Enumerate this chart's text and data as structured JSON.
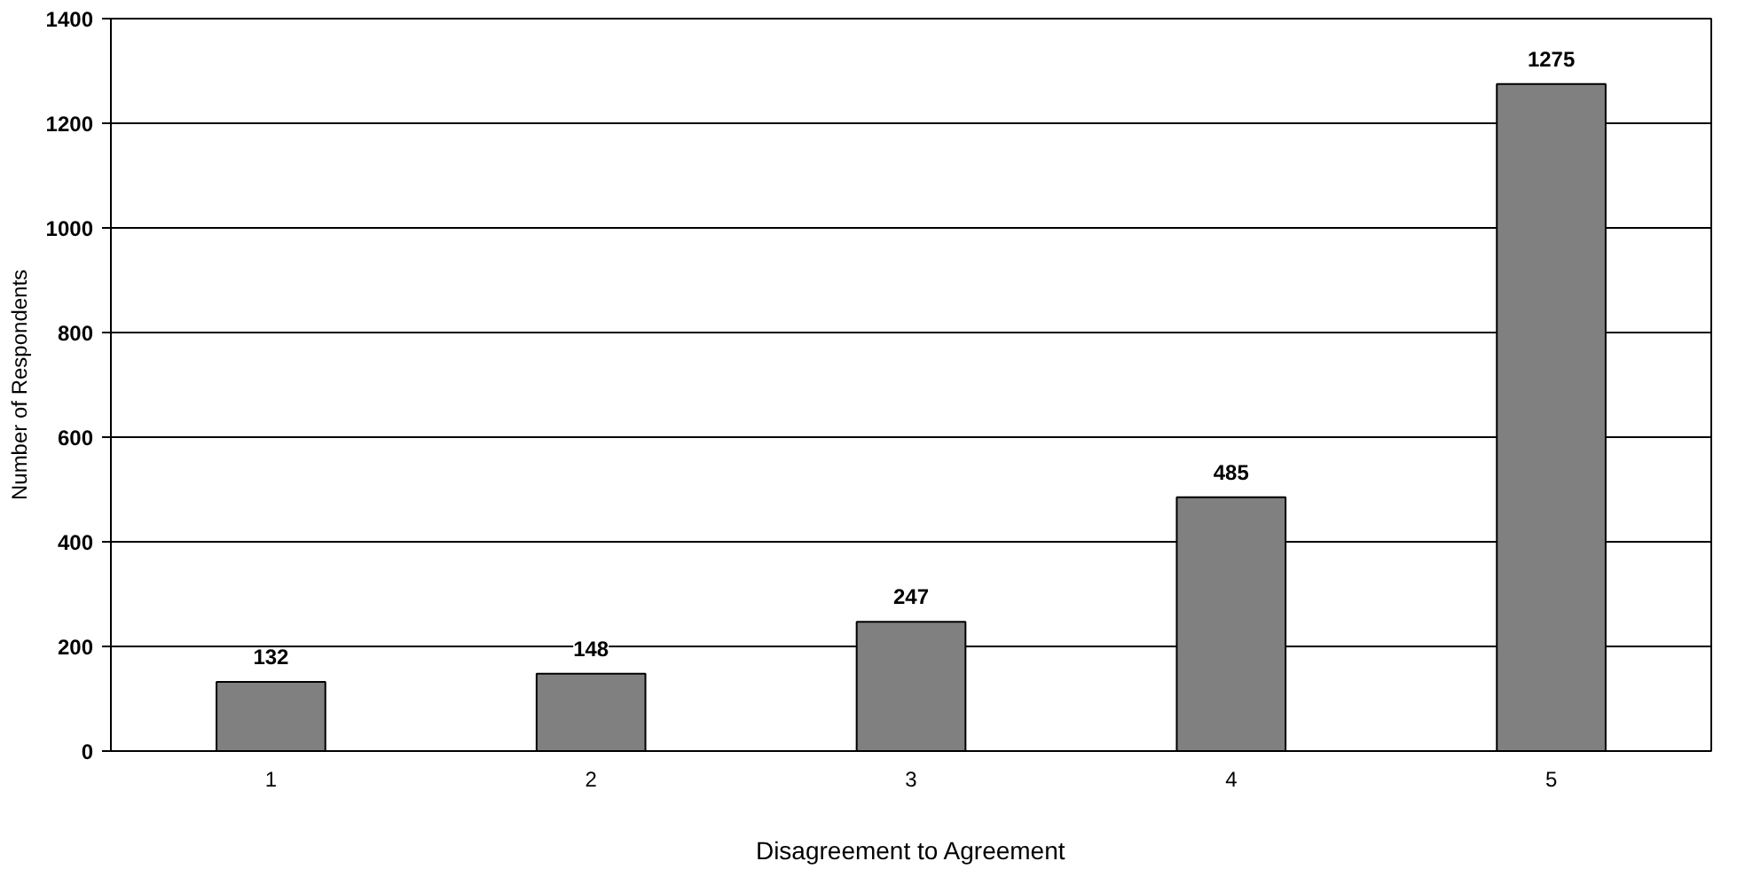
{
  "chart_data": {
    "type": "bar",
    "xlabel": "Disagreement to Agreement",
    "ylabel": "Number of Respondents",
    "categories": [
      "1",
      "2",
      "3",
      "4",
      "5"
    ],
    "values": [
      132,
      148,
      247,
      485,
      1275
    ],
    "color": "#808080",
    "ylim": [
      0,
      1400
    ],
    "yticks": [
      0,
      200,
      400,
      600,
      800,
      1000,
      1200,
      1400
    ],
    "grid": "y",
    "data_labels": true
  }
}
